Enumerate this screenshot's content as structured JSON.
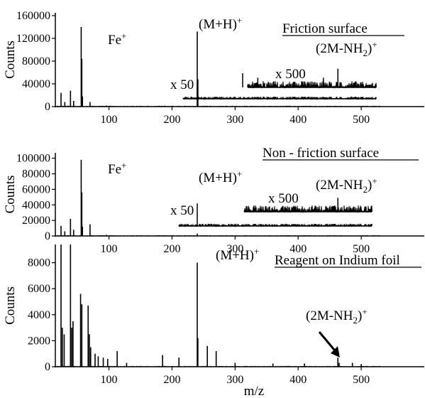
{
  "chart_data": [
    {
      "type": "line",
      "title": "Friction surface",
      "ylabel": "Counts",
      "xlabel": "",
      "xlim": [
        15,
        600
      ],
      "ylim": [
        0,
        165000
      ],
      "xticks": [
        100,
        200,
        300,
        400,
        500
      ],
      "yticks": [
        0,
        40000,
        80000,
        120000,
        160000
      ],
      "ytick_labels": [
        "0",
        "40000",
        "80000",
        "120000",
        "160000"
      ],
      "annotations": {
        "fe": "Fe",
        "mh": "(M+H)",
        "dimer_a": "(2M-NH",
        "dimer_b": "2",
        "dimer_c": ")",
        "plus": "+",
        "x50": "x 50",
        "x500": "x 500"
      },
      "peaks": [
        [
          24,
          24000
        ],
        [
          30,
          8000
        ],
        [
          39,
          28000
        ],
        [
          44,
          10000
        ],
        [
          56,
          140000
        ],
        [
          57,
          84000
        ],
        [
          58,
          18000
        ],
        [
          70,
          8000
        ],
        [
          96,
          2000
        ],
        [
          240,
          132000
        ],
        [
          241,
          48000
        ]
      ],
      "inset_x50": {
        "x_range": [
          200,
          520
        ],
        "baseline": 8000,
        "scale": 50,
        "peaks": [
          [
            240,
            36000
          ]
        ]
      },
      "inset_x500": {
        "x_range": [
          305,
          520
        ],
        "baseline": 35000,
        "scale": 500,
        "peaks": [
          [
            312,
            60000
          ],
          [
            336,
            52000
          ],
          [
            440,
            52000
          ],
          [
            463,
            68000
          ]
        ]
      }
    },
    {
      "type": "line",
      "title": "Non - friction surface",
      "ylabel": "Counts",
      "xlabel": "",
      "xlim": [
        15,
        600
      ],
      "ylim": [
        0,
        107000
      ],
      "xticks": [
        100,
        200,
        300,
        400,
        500
      ],
      "yticks": [
        0,
        20000,
        40000,
        60000,
        80000,
        100000
      ],
      "ytick_labels": [
        "0",
        "20000",
        "40000",
        "60000",
        "80000",
        "100000"
      ],
      "annotations": {
        "fe": "Fe",
        "mh": "(M+H)",
        "dimer_a": "(2M-NH",
        "dimer_b": "2",
        "dimer_c": ")",
        "plus": "+",
        "x50": "x 50",
        "x500": "x 500"
      },
      "peaks": [
        [
          24,
          13000
        ],
        [
          30,
          6000
        ],
        [
          39,
          22000
        ],
        [
          44,
          8000
        ],
        [
          56,
          98000
        ],
        [
          57,
          56000
        ],
        [
          58,
          12000
        ],
        [
          70,
          15000
        ],
        [
          96,
          1500
        ],
        [
          240,
          3000
        ]
      ],
      "inset_x50": {
        "x_range": [
          190,
          515
        ],
        "baseline": 8000,
        "scale": 50,
        "peaks": [
          [
            240,
            37000
          ]
        ]
      },
      "inset_x500": {
        "x_range": [
          300,
          525
        ],
        "baseline": 30000,
        "scale": 500,
        "peaks": [
          [
            463,
            48000
          ]
        ]
      }
    },
    {
      "type": "line",
      "title": "Reagent on Indium foil",
      "ylabel": "Counts",
      "xlabel": "m/z",
      "xlim": [
        15,
        600
      ],
      "ylim": [
        0,
        9400
      ],
      "xticks": [
        100,
        200,
        300,
        400,
        500
      ],
      "yticks": [
        0,
        2000,
        4000,
        6000,
        8000
      ],
      "ytick_labels": [
        "0",
        "2000",
        "4000",
        "6000",
        "8000"
      ],
      "annotations": {
        "mh": "(M+H)",
        "dimer_a": "(2M-NH",
        "dimer_b": "2",
        "dimer_c": ")",
        "plus": "+"
      },
      "peaks": [
        [
          24,
          9400
        ],
        [
          26,
          3000
        ],
        [
          29,
          2500
        ],
        [
          39,
          9400
        ],
        [
          41,
          3000
        ],
        [
          43,
          3500
        ],
        [
          55,
          5600
        ],
        [
          57,
          4800
        ],
        [
          67,
          4700
        ],
        [
          69,
          2500
        ],
        [
          71,
          1500
        ],
        [
          78,
          1000
        ],
        [
          83,
          800
        ],
        [
          91,
          700
        ],
        [
          98,
          600
        ],
        [
          113,
          1200
        ],
        [
          128,
          300
        ],
        [
          185,
          900
        ],
        [
          211,
          700
        ],
        [
          240,
          8000
        ],
        [
          241,
          2200
        ],
        [
          256,
          1600
        ],
        [
          270,
          1200
        ],
        [
          300,
          300
        ],
        [
          360,
          250
        ],
        [
          410,
          250
        ],
        [
          463,
          700
        ],
        [
          465,
          300
        ],
        [
          486,
          300
        ],
        [
          500,
          200
        ]
      ]
    }
  ]
}
